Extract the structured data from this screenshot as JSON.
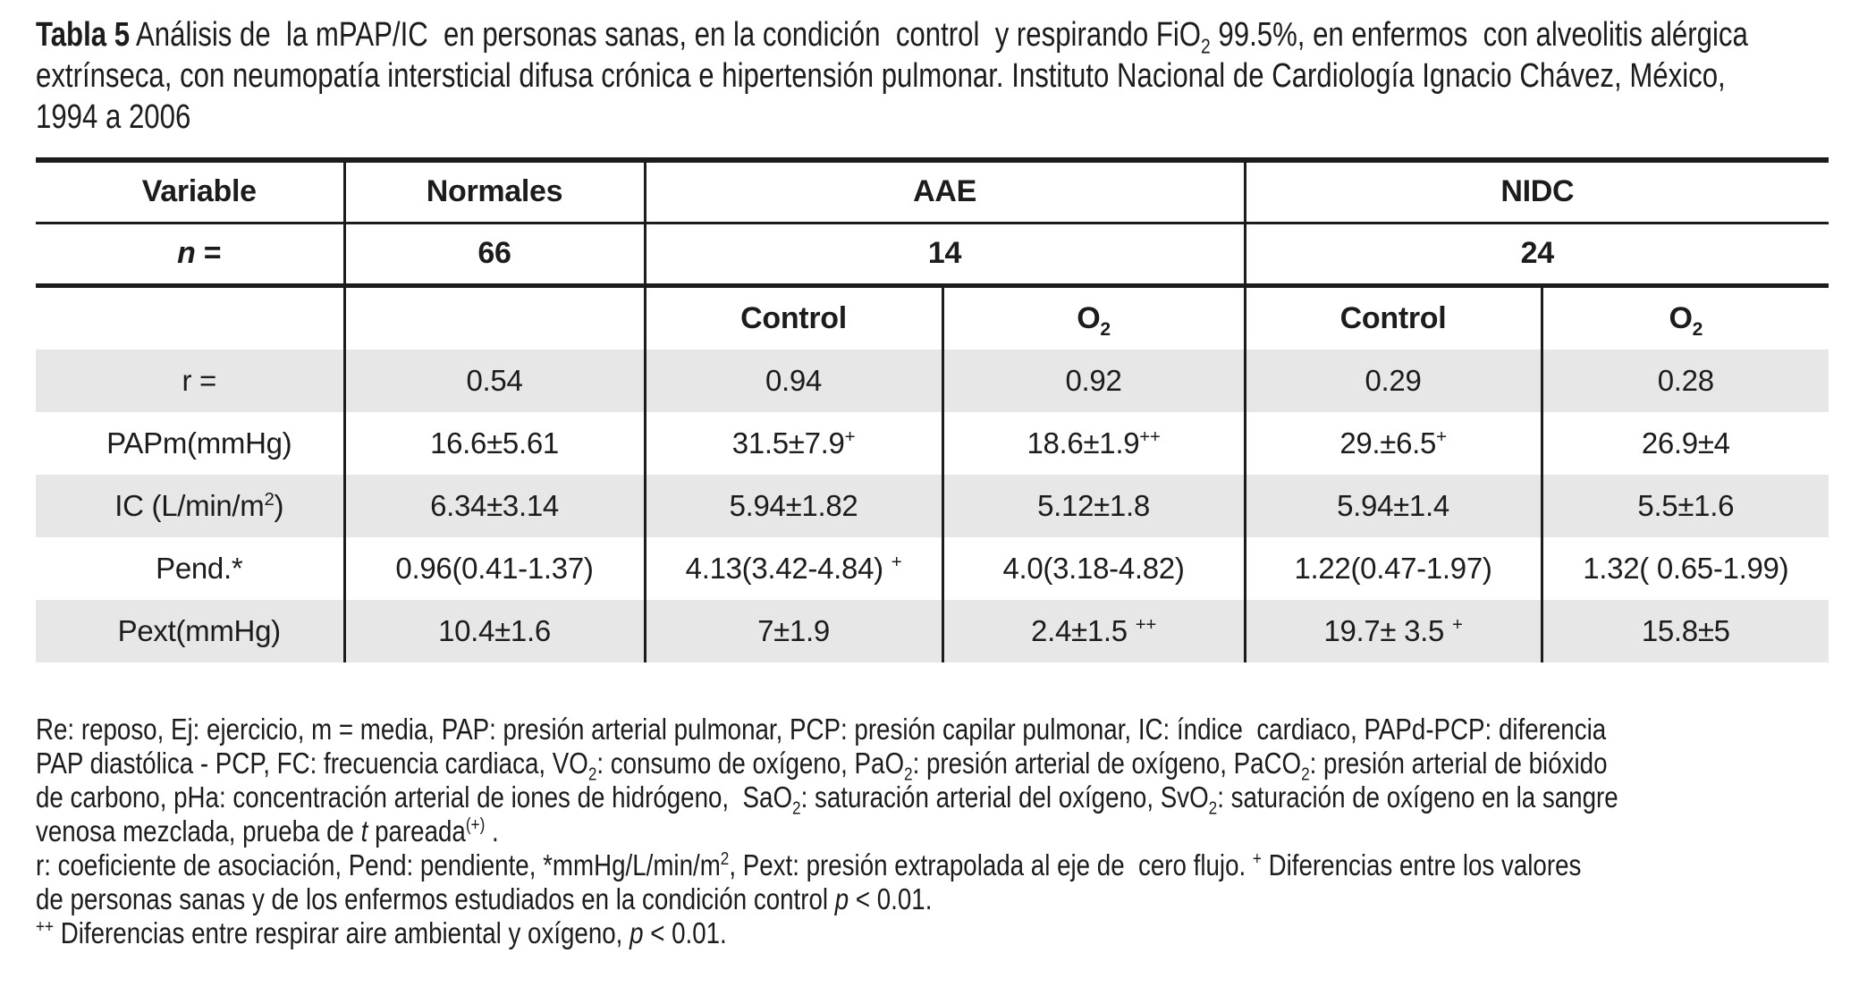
{
  "colors": {
    "row_shading": "#e7e7e7",
    "text": "#1c1c1c",
    "rule": "#1c1c1c"
  },
  "title": {
    "lines": [
      [
        {
          "t": "Tabla 5",
          "b": true
        },
        {
          "t": " Análisis de  la mPAP/IC  en personas sanas, en la condición  control  y respirando FiO"
        },
        {
          "t": "2",
          "sub": true
        },
        {
          "t": " 99.5%, en enfermos  con alveolitis alérgica"
        }
      ],
      [
        {
          "t": "extrínseca, con neumopatía intersticial difusa crónica e hipertensión pulmonar. Instituto Nacional de Cardiología Ignacio Chávez, México,"
        }
      ],
      [
        {
          "t": "1994 a 2006"
        }
      ]
    ]
  },
  "table": {
    "header": {
      "variable": "Variable",
      "normales": "Normales",
      "aae": "AAE",
      "nidc": "NIDC",
      "n_label": [
        {
          "t": "n",
          "i": true
        },
        {
          "t": " ="
        }
      ],
      "n_normales": "66",
      "n_aae": "14",
      "n_nidc": "24",
      "control_aae": "Control",
      "o2_aae": [
        {
          "t": "O"
        },
        {
          "t": "2",
          "sub": true
        }
      ],
      "control_nidc": "Control",
      "o2_nidc": [
        {
          "t": "O"
        },
        {
          "t": "2",
          "sub": true
        }
      ]
    },
    "rows": [
      {
        "cells": [
          "r =",
          "0.54",
          "0.94",
          "0.92",
          "0.29",
          "0.28"
        ]
      },
      {
        "cells": [
          "PAPm(mmHg)",
          "16.6±5.61",
          [
            {
              "t": "31.5±7.9"
            },
            {
              "t": "+",
              "sup": true
            }
          ],
          [
            {
              "t": "18.6±1.9"
            },
            {
              "t": "++",
              "sup": true
            }
          ],
          [
            {
              "t": "29.±6.5"
            },
            {
              "t": "+",
              "sup": true
            }
          ],
          "26.9±4"
        ]
      },
      {
        "cells": [
          [
            {
              "t": "IC (L/min/m"
            },
            {
              "t": "2",
              "sup": true
            },
            {
              "t": ")"
            }
          ],
          "6.34±3.14",
          "5.94±1.82",
          "5.12±1.8",
          "5.94±1.4",
          "5.5±1.6"
        ]
      },
      {
        "cells": [
          "Pend.*",
          "0.96(0.41-1.37)",
          [
            {
              "t": "4.13(3.42-4.84) "
            },
            {
              "t": "+",
              "sup": true
            }
          ],
          "4.0(3.18-4.82)",
          "1.22(0.47-1.97)",
          "1.32( 0.65-1.99)"
        ]
      },
      {
        "cells": [
          "Pext(mmHg)",
          "10.4±1.6",
          "7±1.9",
          [
            {
              "t": "2.4±1.5 "
            },
            {
              "t": "++",
              "sup": true
            }
          ],
          [
            {
              "t": "19.7± 3.5 "
            },
            {
              "t": "+",
              "sup": true
            }
          ],
          "15.8±5"
        ]
      }
    ]
  },
  "footnotes": {
    "lines": [
      [
        {
          "t": "Re: reposo, Ej: ejercicio, m = media, PAP: presión arterial pulmonar, PCP: presión capilar pulmonar, IC: índice  cardiaco, PAPd-PCP: diferencia"
        }
      ],
      [
        {
          "t": "PAP diastólica - PCP, FC: frecuencia cardiaca, VO"
        },
        {
          "t": "2",
          "sub": true
        },
        {
          "t": ": consumo de oxígeno, PaO"
        },
        {
          "t": "2",
          "sub": true
        },
        {
          "t": ": presión arterial de oxígeno, PaCO"
        },
        {
          "t": "2",
          "sub": true
        },
        {
          "t": ": presión arterial de bióxido"
        }
      ],
      [
        {
          "t": "de carbono, pHa: concentración arterial de iones de hidrógeno,  SaO"
        },
        {
          "t": "2",
          "sub": true
        },
        {
          "t": ": saturación arterial del oxígeno, SvO"
        },
        {
          "t": "2",
          "sub": true
        },
        {
          "t": ": saturación de oxígeno en la sangre"
        }
      ],
      [
        {
          "t": "venosa mezclada, prueba de "
        },
        {
          "t": "t",
          "i": true
        },
        {
          "t": " pareada"
        },
        {
          "t": "(+)",
          "sup": true
        },
        {
          "t": " ."
        }
      ],
      [
        {
          "t": "r: coeficiente de asociación, Pend: pendiente, *mmHg/L/min/m"
        },
        {
          "t": "2",
          "sup": true
        },
        {
          "t": ", Pext: presión extrapolada al eje de  cero flujo. "
        },
        {
          "t": "+",
          "sup": true
        },
        {
          "t": " Diferencias entre los valores"
        }
      ],
      [
        {
          "t": "de personas sanas y de los enfermos estudiados en la condición control "
        },
        {
          "t": "p",
          "i": true
        },
        {
          "t": " < 0.01."
        }
      ],
      [
        {
          "t": "++",
          "sup": true
        },
        {
          "t": " Diferencias entre respirar aire ambiental y oxígeno, "
        },
        {
          "t": "p",
          "i": true
        },
        {
          "t": " < 0.01."
        }
      ]
    ]
  }
}
